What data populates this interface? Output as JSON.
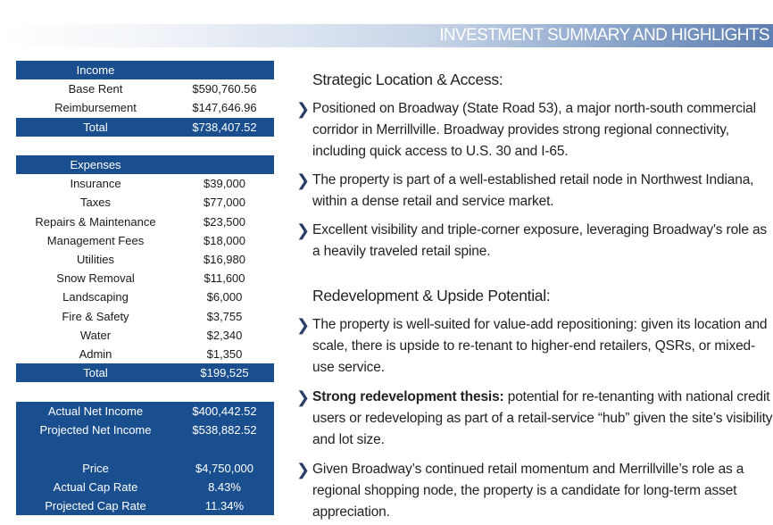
{
  "header": {
    "title": "INVESTMENT SUMMARY AND HIGHLIGHTS"
  },
  "income": {
    "heading": "Income",
    "rows": [
      {
        "label": "Base Rent",
        "value": "$590,760.56"
      },
      {
        "label": "Reimbursement",
        "value": "$147,646.96"
      }
    ],
    "total": {
      "label": "Total",
      "value": "$738,407.52"
    }
  },
  "expenses": {
    "heading": "Expenses",
    "rows": [
      {
        "label": "Insurance",
        "value": "$39,000"
      },
      {
        "label": "Taxes",
        "value": "$77,000"
      },
      {
        "label": "Repairs & Maintenance",
        "value": "$23,500"
      },
      {
        "label": "Management Fees",
        "value": "$18,000"
      },
      {
        "label": "Utilities",
        "value": "$16,980"
      },
      {
        "label": "Snow Removal",
        "value": "$11,600"
      },
      {
        "label": "Landscaping",
        "value": "$6,000"
      },
      {
        "label": "Fire & Safety",
        "value": "$3,755"
      },
      {
        "label": "Water",
        "value": "$2,340"
      },
      {
        "label": "Admin",
        "value": "$1,350"
      }
    ],
    "total": {
      "label": "Total",
      "value": "$199,525"
    }
  },
  "summary": {
    "rows": [
      {
        "label": "Actual Net Income",
        "value": "$400,442.52"
      },
      {
        "label": "Projected Net Income",
        "value": "$538,882.52"
      },
      {
        "label": "",
        "value": ""
      },
      {
        "label": "Price",
        "value": "$4,750,000"
      },
      {
        "label": "Actual Cap Rate",
        "value": "8.43%"
      },
      {
        "label": "Projected Cap Rate",
        "value": "11.34%"
      }
    ]
  },
  "section1": {
    "heading": "Strategic Location & Access:",
    "bullets": [
      "Positioned on Broadway (State Road 53), a major north-south commercial corridor in Merrillville. Broadway provides strong regional connectivity, including quick access to U.S. 30 and I-65.",
      "The property is part of a well-established retail node in Northwest Indiana, within a dense retail and service market.",
      "Excellent visibility and triple-corner exposure, leveraging Broadway's role as a heavily traveled retail spine."
    ]
  },
  "section2": {
    "heading": "Redevelopment & Upside Potential:",
    "bullet1": "The property is well-suited for value-add repositioning: given its location and scale, there is upside to re-tenant to higher-end retailers, QSRs, or mixed-use service.",
    "bullet2_bold": "Strong redevelopment thesis:",
    "bullet2_rest": " potential for re-tenanting with national credit users or redeveloping as part of a retail-service “hub” given the site’s visibility and lot size.",
    "bullet3": "Given Broadway’s continued retail momentum and Merrillville’s role as a regional shopping node, the property is a candidate for long-term asset appreciation."
  },
  "colors": {
    "table_blue": "#1a4f8f",
    "arrow": "#2c3e66",
    "banner_end": "#5e7fb1"
  }
}
